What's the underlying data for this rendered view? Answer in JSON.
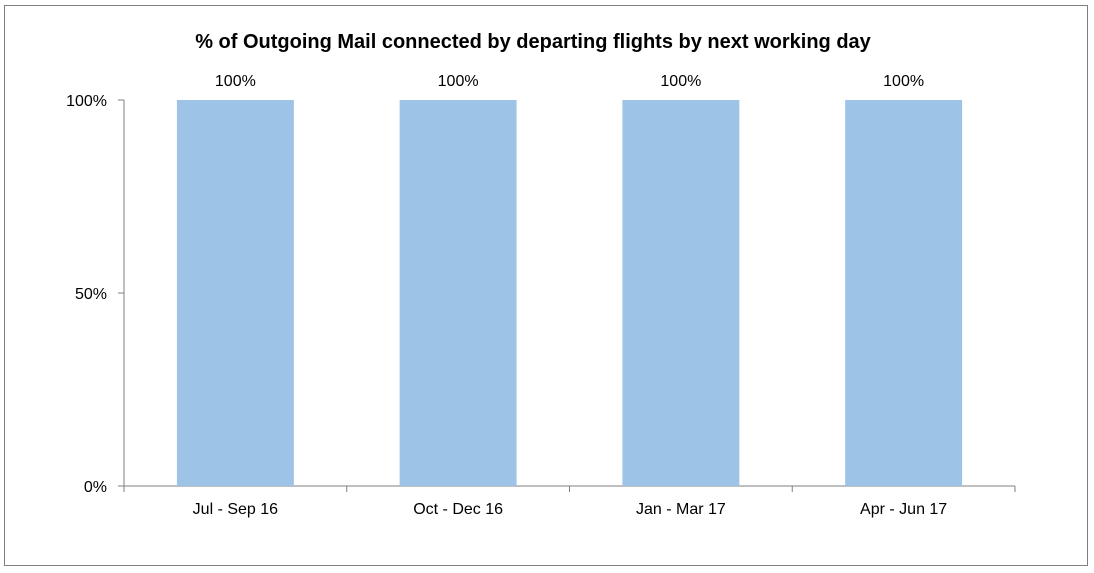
{
  "chart_data": {
    "type": "bar",
    "title": "% of Outgoing Mail connected by departing flights by next working day",
    "xlabel": "",
    "ylabel": "",
    "categories": [
      "Jul - Sep 16",
      "Oct - Dec 16",
      "Jan - Mar 17",
      "Apr - Jun 17"
    ],
    "values": [
      100,
      100,
      100,
      100
    ],
    "value_labels": [
      "100%",
      "100%",
      "100%",
      "100%"
    ],
    "ylim": [
      0,
      100
    ],
    "yticks": [
      0,
      50,
      100
    ],
    "ytick_labels": [
      "0%",
      "50%",
      "100%"
    ],
    "grid": false,
    "legend": "none",
    "bar_color": "#9dc3e6"
  }
}
